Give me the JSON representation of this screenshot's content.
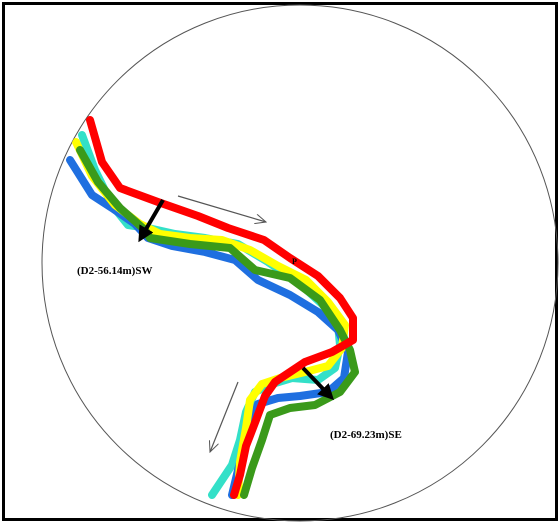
{
  "diagram": {
    "annotations": {
      "left_label": "(D2-56.14m)SW",
      "right_label": "(D2-69.23m)SE",
      "point_label": "P"
    },
    "colors": {
      "frame": "#000000",
      "circle": "#555555",
      "river_red": "#ff0000",
      "river_yellow": "#ffff00",
      "river_cyan": "#33e0c8",
      "river_blue": "#1f6fe0",
      "river_green": "#3a9a1a",
      "displacement_arrow": "#000000",
      "flow_arrow": "#555555"
    }
  }
}
